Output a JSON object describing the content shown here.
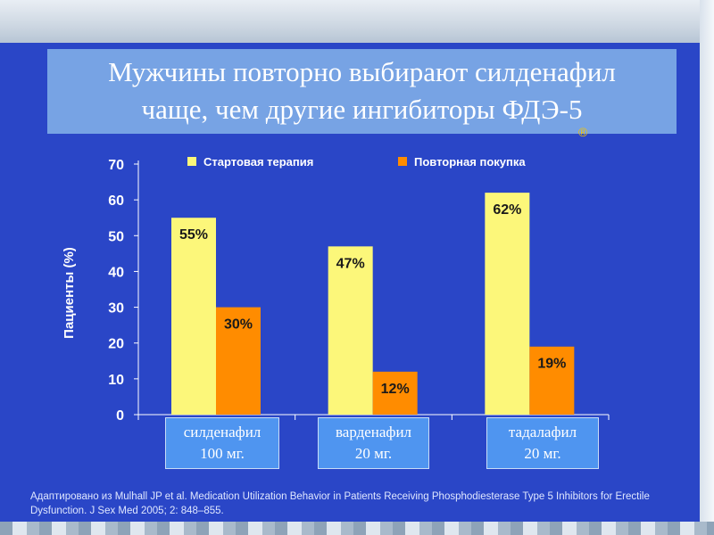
{
  "title": {
    "line1": "Мужчины повторно выбирают силденафил",
    "line2": "чаще, чем другие ингибиторы ФДЭ-5"
  },
  "decor": {
    "mark": "®"
  },
  "colors": {
    "background": "#2a46c7",
    "initial": "#fcf77a",
    "repeat": "#ff8c00",
    "category_box": "#4f95f0",
    "axis": "#ffffff"
  },
  "chart_data": {
    "type": "bar",
    "categories": [
      "силденафил 100 мг.",
      "варденафил 20 мг.",
      "тадалафил 20 мг."
    ],
    "category_lines": [
      [
        "силденафил",
        "100 мг."
      ],
      [
        "варденафил",
        "20 мг."
      ],
      [
        "тадалафил",
        "20 мг."
      ]
    ],
    "series": [
      {
        "name": "Стартовая терапия",
        "values": [
          55,
          47,
          62
        ],
        "labels": [
          "55%",
          "47%",
          "62%"
        ]
      },
      {
        "name": "Повторная покупка",
        "values": [
          30,
          12,
          19
        ],
        "labels": [
          "30%",
          "12%",
          "19%"
        ]
      }
    ],
    "ylabel": "Пациенты (%)",
    "xlabel": "",
    "ylim": [
      0,
      70
    ],
    "yticks": [
      0,
      10,
      20,
      30,
      40,
      50,
      60,
      70
    ],
    "legend_position": "top"
  },
  "footnote": {
    "line1": "Адаптировано из Mulhall JP et al. Medication Utilization Behavior in Patients Receiving Phosphodiesterase Type 5 Inhibitors for Erectile",
    "line2": "Dysfunction. J Sex Med 2005; 2: 848–855."
  }
}
